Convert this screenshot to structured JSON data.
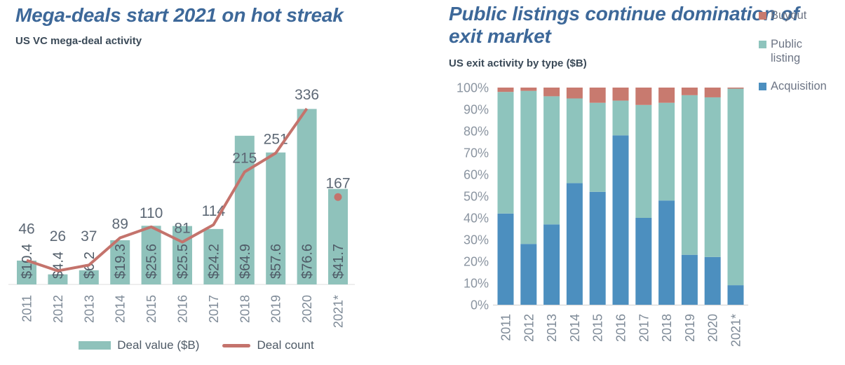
{
  "chart_data": [
    {
      "type": "bar+line",
      "title": "Mega-deals start 2021 on hot streak",
      "subtitle": "US VC mega-deal activity",
      "categories": [
        "2011",
        "2012",
        "2013",
        "2014",
        "2015",
        "2016",
        "2017",
        "2018",
        "2019",
        "2020",
        "2021*"
      ],
      "series": [
        {
          "name": "Deal value ($B)",
          "type": "bar",
          "color": "#8fc2bb",
          "values": [
            10.4,
            4.4,
            6.2,
            19.3,
            25.6,
            25.5,
            24.2,
            64.9,
            57.6,
            76.6,
            41.7
          ],
          "labels": [
            "$10.4",
            "$4.4",
            "$6.2",
            "$19.3",
            "$25.6",
            "$25.5",
            "$24.2",
            "$64.9",
            "$57.6",
            "$76.6",
            "$41.7"
          ]
        },
        {
          "name": "Deal count",
          "type": "line",
          "color": "#c4736c",
          "values": [
            46,
            26,
            37,
            89,
            110,
            81,
            114,
            215,
            251,
            336,
            167
          ],
          "last_point_marker_only": true
        }
      ],
      "xlabel": "",
      "ylabel": "",
      "axes_hidden": true,
      "legend_position": "bottom"
    },
    {
      "type": "stacked-bar-100",
      "title": "Public listings continue domination of exit market",
      "subtitle": "US exit activity by type ($B)",
      "categories": [
        "2011",
        "2012",
        "2013",
        "2014",
        "2015",
        "2016",
        "2017",
        "2018",
        "2019",
        "2020",
        "2021*"
      ],
      "series": [
        {
          "name": "Acquisition",
          "color": "#4c8fbf",
          "values": [
            42,
            28,
            37,
            56,
            52,
            78,
            40,
            48,
            23,
            22,
            9
          ]
        },
        {
          "name": "Public listing",
          "color": "#8ec4bd",
          "values": [
            56,
            70.5,
            59,
            39,
            41,
            16,
            52,
            45,
            73.5,
            73.5,
            90.5
          ]
        },
        {
          "name": "Buyout",
          "color": "#c87a6f",
          "values": [
            2,
            1.5,
            4,
            5,
            7,
            6,
            8,
            7,
            3.5,
            4.5,
            0.5
          ]
        }
      ],
      "yticks": [
        "0%",
        "10%",
        "20%",
        "30%",
        "40%",
        "50%",
        "60%",
        "70%",
        "80%",
        "90%",
        "100%"
      ],
      "ylim": [
        0,
        100
      ],
      "grid": false,
      "legend_position": "right"
    }
  ]
}
